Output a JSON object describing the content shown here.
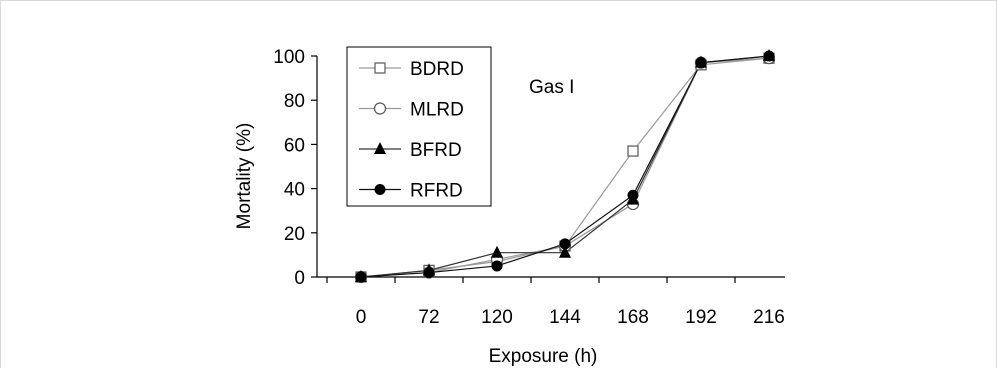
{
  "chart_data": {
    "type": "line",
    "annotation": "Gas I",
    "xlabel": "Exposure (h)",
    "ylabel": "Mortality (%)",
    "categories": [
      "0",
      "72",
      "120",
      "144",
      "168",
      "192",
      "216"
    ],
    "ylim": [
      0,
      100
    ],
    "yticks": [
      "0",
      "20",
      "40",
      "60",
      "80",
      "100"
    ],
    "grid": false,
    "legend_position": "top-left",
    "series": [
      {
        "name": "BDRD",
        "marker": "open-square",
        "values": [
          0,
          3,
          7,
          14,
          57,
          96,
          99
        ]
      },
      {
        "name": "MLRD",
        "marker": "open-circle",
        "values": [
          0,
          2,
          8,
          14,
          33,
          97,
          99
        ]
      },
      {
        "name": "BFRD",
        "marker": "filled-triangle",
        "values": [
          0,
          3,
          11,
          11,
          35,
          97,
          100
        ]
      },
      {
        "name": "RFRD",
        "marker": "filled-circle",
        "values": [
          0,
          2,
          5,
          15,
          37,
          97,
          100
        ]
      }
    ]
  }
}
